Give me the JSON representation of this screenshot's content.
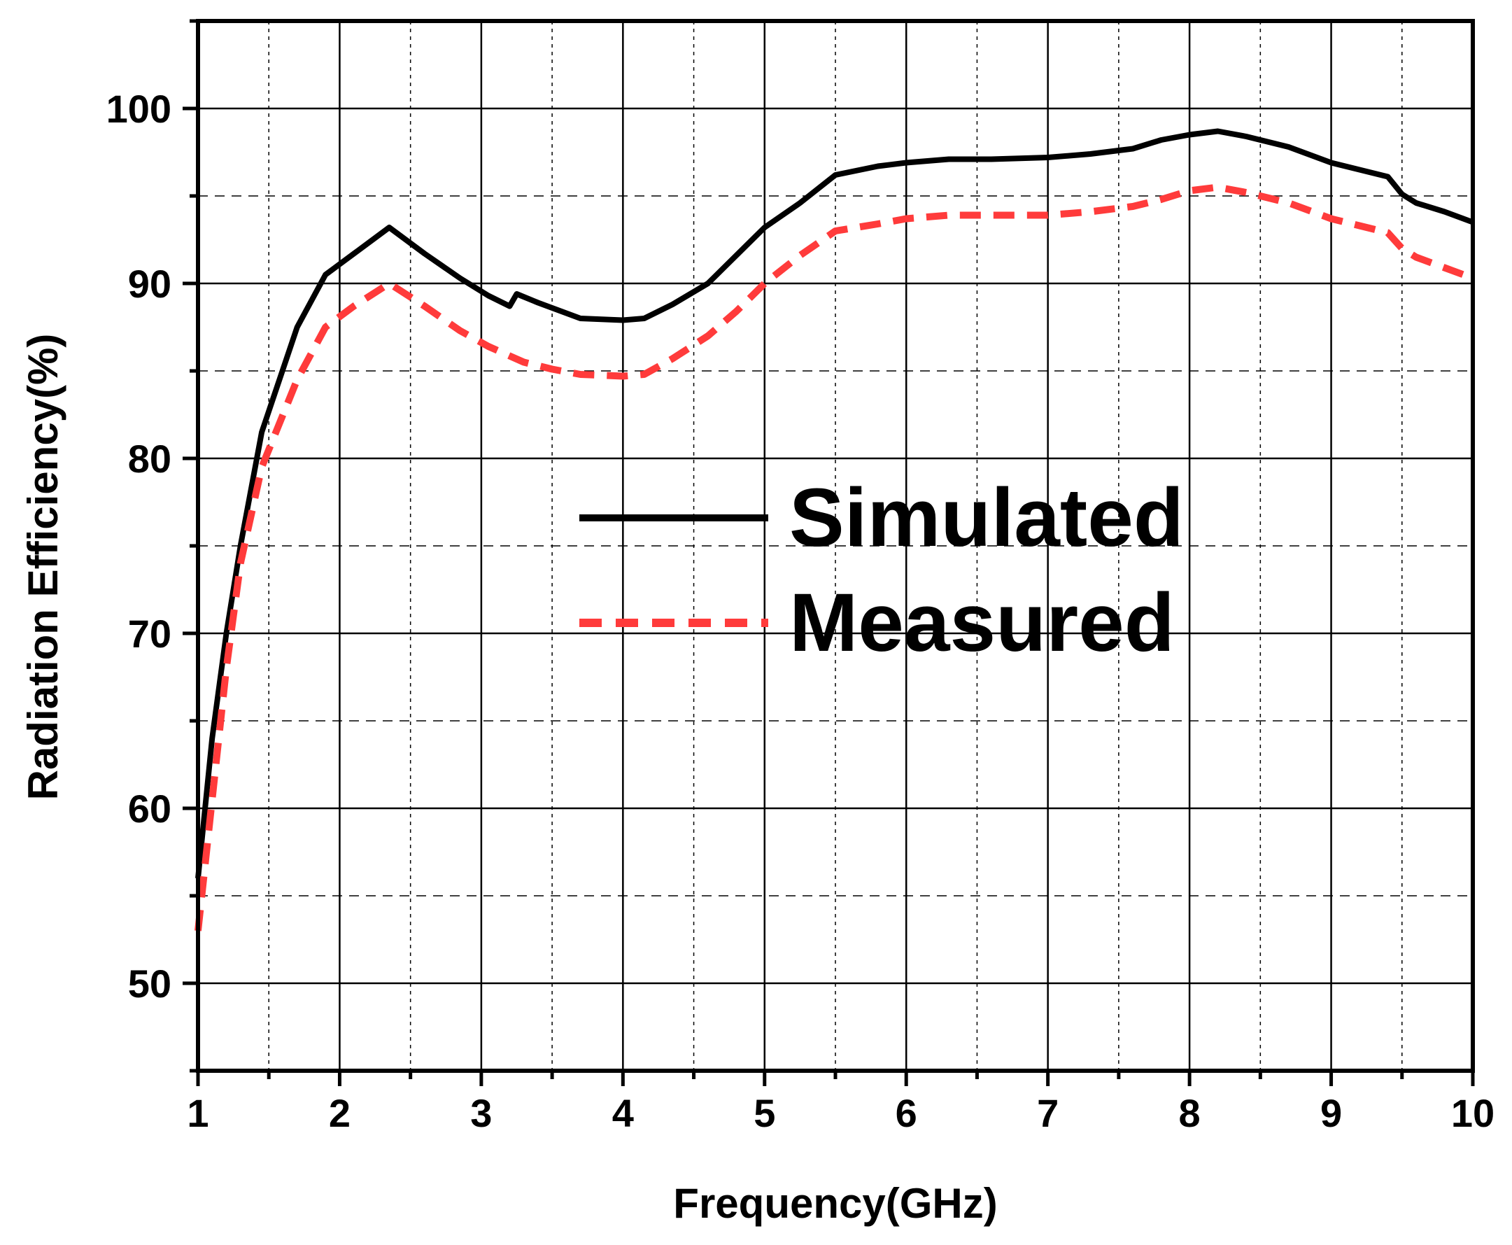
{
  "chart_data": {
    "type": "line",
    "title": "",
    "xlabel": "Frequency(GHz)",
    "ylabel": "Radiation Efficiency(%)",
    "xlim": [
      1,
      10
    ],
    "ylim": [
      45,
      105
    ],
    "xticks": [
      1,
      2,
      3,
      4,
      5,
      6,
      7,
      8,
      9,
      10
    ],
    "xtick_labels": [
      "1",
      "2",
      "3",
      "4",
      "5",
      "6",
      "7",
      "8",
      "9",
      "10"
    ],
    "yticks": [
      50,
      60,
      70,
      80,
      90,
      100
    ],
    "ytick_labels": [
      "50",
      "60",
      "70",
      "80",
      "90",
      "100"
    ],
    "grid": true,
    "legend_position": "center-right",
    "series": [
      {
        "name": "Simulated",
        "color": "#000000",
        "style": "solid",
        "x": [
          1.0,
          1.1,
          1.2,
          1.3,
          1.45,
          1.7,
          1.9,
          2.1,
          2.35,
          2.6,
          2.85,
          3.05,
          3.2,
          3.25,
          3.4,
          3.7,
          4.0,
          4.15,
          4.35,
          4.6,
          4.8,
          5.0,
          5.25,
          5.5,
          5.8,
          6.0,
          6.3,
          6.6,
          7.0,
          7.3,
          7.6,
          7.8,
          8.0,
          8.2,
          8.4,
          8.7,
          9.0,
          9.2,
          9.4,
          9.5,
          9.6,
          9.8,
          10.0
        ],
        "y": [
          56.0,
          64.0,
          70.0,
          75.0,
          81.5,
          87.5,
          90.5,
          91.7,
          93.2,
          91.7,
          90.3,
          89.3,
          88.7,
          89.4,
          88.9,
          88.0,
          87.9,
          88.0,
          88.8,
          90.0,
          91.6,
          93.2,
          94.6,
          96.2,
          96.7,
          96.9,
          97.1,
          97.1,
          97.2,
          97.4,
          97.7,
          98.2,
          98.5,
          98.7,
          98.4,
          97.8,
          96.9,
          96.5,
          96.1,
          95.1,
          94.6,
          94.1,
          93.5
        ]
      },
      {
        "name": "Measured",
        "color": "#ff3b3b",
        "style": "dashed",
        "x": [
          1.0,
          1.1,
          1.2,
          1.3,
          1.45,
          1.7,
          1.9,
          2.1,
          2.35,
          2.6,
          2.85,
          3.05,
          3.3,
          3.5,
          3.7,
          4.0,
          4.15,
          4.35,
          4.6,
          4.8,
          5.0,
          5.25,
          5.5,
          5.8,
          6.0,
          6.3,
          6.6,
          7.0,
          7.3,
          7.6,
          7.8,
          8.0,
          8.2,
          8.4,
          8.7,
          9.0,
          9.2,
          9.4,
          9.5,
          9.6,
          9.8,
          10.0
        ],
        "y": [
          53.0,
          60.5,
          68.0,
          74.0,
          79.5,
          84.5,
          87.5,
          88.7,
          90.0,
          88.7,
          87.3,
          86.4,
          85.5,
          85.1,
          84.8,
          84.7,
          84.8,
          85.7,
          87.0,
          88.4,
          90.0,
          91.6,
          93.0,
          93.4,
          93.7,
          93.9,
          93.9,
          93.9,
          94.1,
          94.4,
          94.8,
          95.3,
          95.5,
          95.2,
          94.6,
          93.7,
          93.3,
          92.9,
          92.0,
          91.5,
          90.9,
          90.3
        ]
      }
    ]
  }
}
